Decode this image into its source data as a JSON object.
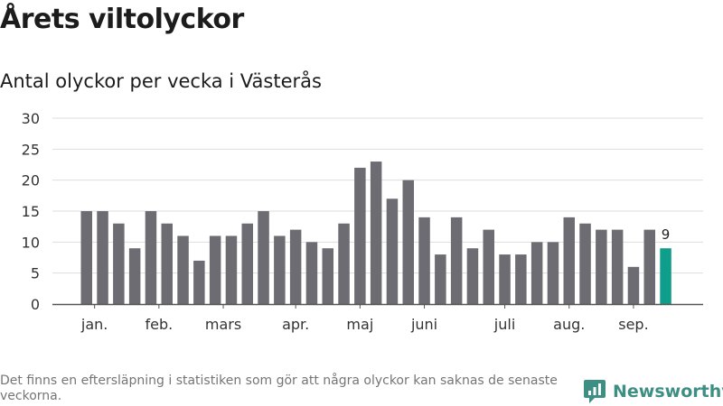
{
  "header": {
    "title": "Årets viltolyckor",
    "subtitle": "Antal olyckor per vecka i Västerås"
  },
  "footer": {
    "note": "Det finns en eftersläpning i statistiken som gör att några olyckor kan saknas de senaste veckorna."
  },
  "brand": {
    "name": "Newsworthy",
    "icon": "bar-chart-logo-icon"
  },
  "colors": {
    "bar": "#6d6c72",
    "highlight": "#0f9e8c",
    "grid": "#dddddd",
    "axis": "#555555",
    "brand": "#3e8f83"
  },
  "chart_data": {
    "type": "bar",
    "title": "",
    "xlabel": "",
    "ylabel": "",
    "ylim": [
      0,
      30
    ],
    "yticks": [
      0,
      5,
      10,
      15,
      20,
      25,
      30
    ],
    "grid": true,
    "legend": "none",
    "values": [
      15,
      15,
      13,
      9,
      15,
      13,
      11,
      7,
      11,
      11,
      13,
      15,
      11,
      12,
      10,
      9,
      13,
      22,
      23,
      17,
      20,
      14,
      8,
      14,
      9,
      12,
      8,
      8,
      10,
      10,
      14,
      13,
      12,
      12,
      6,
      12,
      9
    ],
    "highlight_index": 36,
    "highlight_label": "9",
    "month_labels": [
      {
        "label": "jan.",
        "bar": 0.5
      },
      {
        "label": "feb.",
        "bar": 4.5
      },
      {
        "label": "mars",
        "bar": 8.5
      },
      {
        "label": "apr.",
        "bar": 13
      },
      {
        "label": "maj",
        "bar": 17
      },
      {
        "label": "juni",
        "bar": 21
      },
      {
        "label": "juli",
        "bar": 26
      },
      {
        "label": "aug.",
        "bar": 30
      },
      {
        "label": "sep.",
        "bar": 34
      }
    ]
  }
}
